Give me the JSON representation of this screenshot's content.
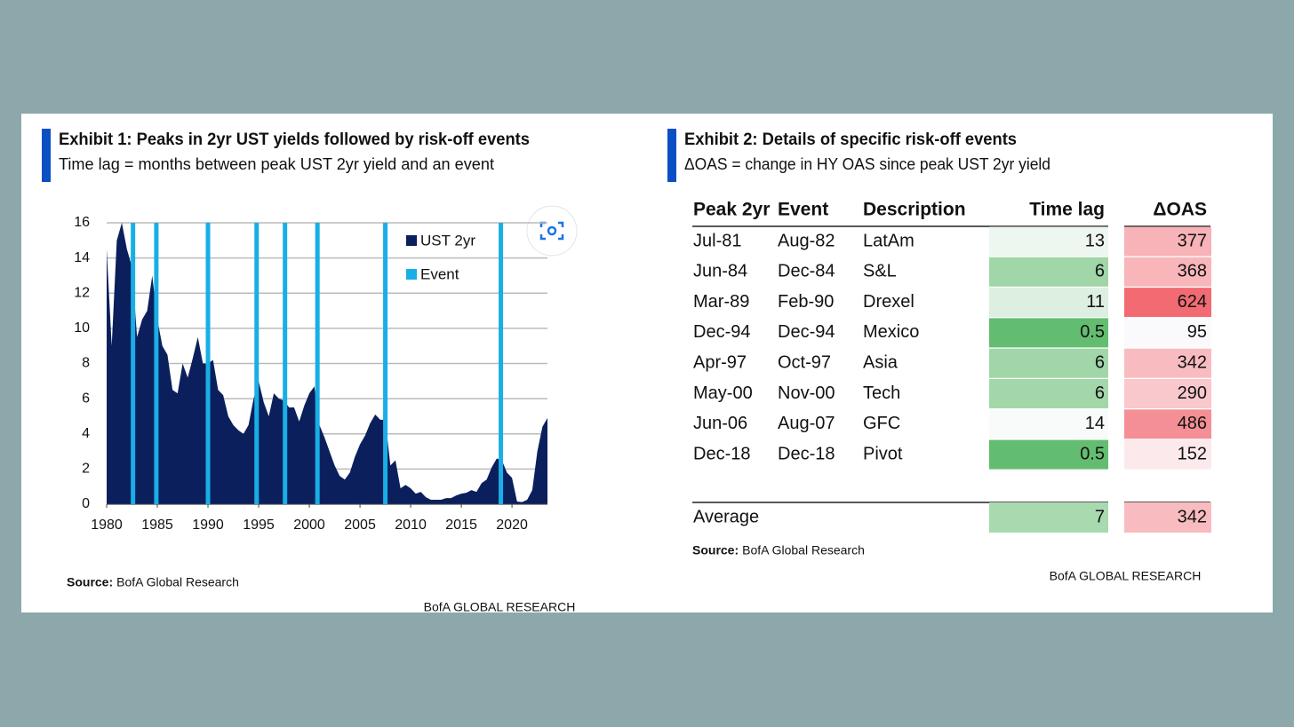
{
  "chart_data": {
    "type": "area",
    "title": "Exhibit 1: Peaks in 2yr UST yields followed by risk-off events",
    "subtitle": "Time lag = months between peak UST 2yr yield and an event",
    "x": [
      1980,
      1980.5,
      1981,
      1981.5,
      1982,
      1982.5,
      1983,
      1983.5,
      1984,
      1984.5,
      1985,
      1985.5,
      1986,
      1986.5,
      1987,
      1987.5,
      1988,
      1988.5,
      1989,
      1989.5,
      1990,
      1990.5,
      1991,
      1991.5,
      1992,
      1992.5,
      1993,
      1993.5,
      1994,
      1994.5,
      1995,
      1995.5,
      1996,
      1996.5,
      1997,
      1997.5,
      1998,
      1998.5,
      1999,
      1999.5,
      2000,
      2000.5,
      2001,
      2001.5,
      2002,
      2002.5,
      2003,
      2003.5,
      2004,
      2004.5,
      2005,
      2005.5,
      2006,
      2006.5,
      2007,
      2007.5,
      2008,
      2008.5,
      2009,
      2009.5,
      2010,
      2010.5,
      2011,
      2011.5,
      2012,
      2012.5,
      2013,
      2013.5,
      2014,
      2014.5,
      2015,
      2015.5,
      2016,
      2016.5,
      2017,
      2017.5,
      2018,
      2018.5,
      2019,
      2019.5,
      2020,
      2020.5,
      2021,
      2021.5,
      2022,
      2022.5,
      2023,
      2023.5
    ],
    "series": [
      {
        "name": "UST 2yr",
        "color": "#0b1f5c",
        "values": [
          14.5,
          9,
          15,
          16,
          14.5,
          13.5,
          9.5,
          10.5,
          11,
          13,
          10.5,
          9,
          8.5,
          6.5,
          6.3,
          8,
          7.2,
          8.3,
          9.5,
          8,
          8,
          8.2,
          6.5,
          6.2,
          5,
          4.5,
          4.2,
          4,
          4.5,
          6,
          7,
          5.8,
          5,
          6.3,
          6,
          5.9,
          5.5,
          5.5,
          4.7,
          5.6,
          6.3,
          6.7,
          4.5,
          3.8,
          3,
          2.2,
          1.6,
          1.4,
          1.8,
          2.7,
          3.4,
          3.9,
          4.6,
          5.1,
          4.8,
          4.8,
          2.2,
          2.5,
          0.9,
          1.1,
          0.9,
          0.6,
          0.7,
          0.4,
          0.25,
          0.25,
          0.25,
          0.35,
          0.35,
          0.5,
          0.6,
          0.65,
          0.8,
          0.7,
          1.2,
          1.4,
          2.1,
          2.6,
          2.5,
          1.8,
          1.5,
          0.15,
          0.12,
          0.25,
          0.8,
          3,
          4.4,
          4.9
        ]
      }
    ],
    "events": {
      "name": "Event",
      "color": "#19aee6",
      "x": [
        1982.6,
        1984.9,
        1990.0,
        1994.8,
        1997.6,
        2000.8,
        2007.5,
        2018.9
      ]
    },
    "xlim": [
      1980,
      2023.5
    ],
    "ylim": [
      0,
      16
    ],
    "xticks": [
      1980,
      1985,
      1990,
      1995,
      2000,
      2005,
      2010,
      2015,
      2020
    ],
    "yticks": [
      0,
      2,
      4,
      6,
      8,
      10,
      12,
      14,
      16
    ],
    "grid": true,
    "source": {
      "label": "Source:",
      "text": "BofA Global Research"
    },
    "footer": "BofA GLOBAL RESEARCH"
  },
  "table": {
    "title": "Exhibit 2: Details of specific risk-off events",
    "subtitle": "ΔOAS = change in HY OAS since peak UST 2yr yield",
    "columns": [
      "Peak 2yr",
      "Event",
      "Description",
      "Time lag",
      "ΔOAS"
    ],
    "rows": [
      [
        "Jul-81",
        "Aug-82",
        "LatAm",
        13,
        377
      ],
      [
        "Jun-84",
        "Dec-84",
        "S&L",
        6,
        368
      ],
      [
        "Mar-89",
        "Feb-90",
        "Drexel",
        11,
        624
      ],
      [
        "Dec-94",
        "Dec-94",
        "Mexico",
        0.5,
        95
      ],
      [
        "Apr-97",
        "Oct-97",
        "Asia",
        6,
        342
      ],
      [
        "May-00",
        "Nov-00",
        "Tech",
        6,
        290
      ],
      [
        "Jun-06",
        "Aug-07",
        "GFC",
        14,
        486
      ],
      [
        "Dec-18",
        "Dec-18",
        "Pivot",
        0.5,
        152
      ]
    ],
    "row_colors": [
      [
        "#eef6f0",
        "#f7b3b7"
      ],
      [
        "#a0d6a8",
        "#f8b6ba"
      ],
      [
        "#dcefe0",
        "#f26b72"
      ],
      [
        "#63bd70",
        "#fafafc"
      ],
      [
        "#a0d6a8",
        "#f8bcc0"
      ],
      [
        "#a3d7aa",
        "#f9c8cc"
      ],
      [
        "#f8fbf9",
        "#f48f95"
      ],
      [
        "#63bd70",
        "#fbe9eb"
      ]
    ],
    "average": {
      "label": "Average",
      "values": [
        7,
        342
      ],
      "colors": [
        "#a8d9af",
        "#f8bcc0"
      ]
    },
    "source": {
      "label": "Source:",
      "text": "BofA Global Research"
    },
    "footer": "BofA GLOBAL RESEARCH"
  }
}
